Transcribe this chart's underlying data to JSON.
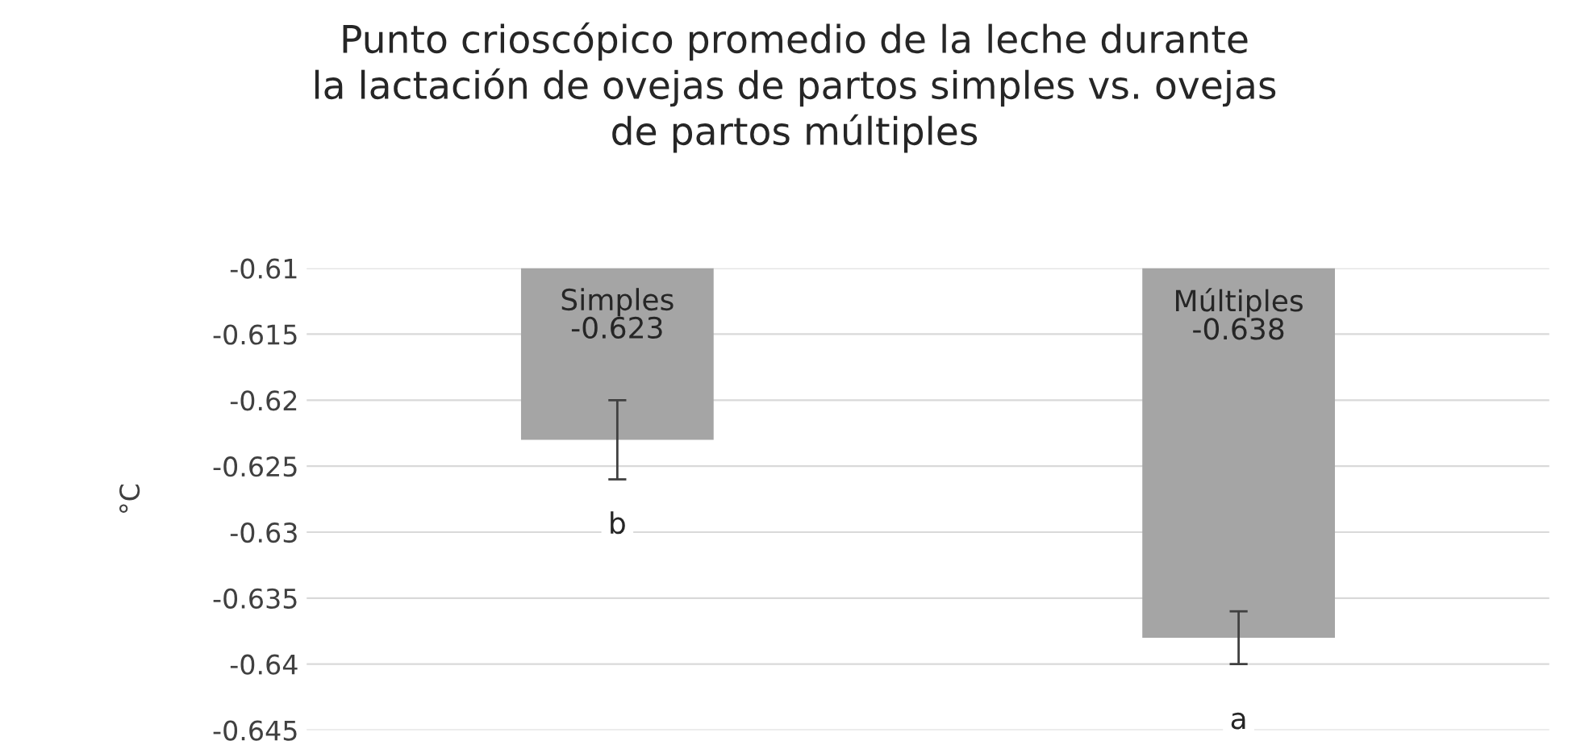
{
  "chart_data": {
    "type": "bar",
    "title": "Punto crioscópico promedio de la leche durante\nla lactación de ovejas de partos simples vs. ovejas\nde partos múltiples",
    "ylabel": "°C",
    "categories": [
      "Simples",
      "Múltiples"
    ],
    "values": [
      -0.623,
      -0.638
    ],
    "errors": [
      0.003,
      0.002
    ],
    "color": "#a5a5a5",
    "data_labels": true,
    "annotations": [
      {
        "text": "b",
        "x": "Simples",
        "y": -0.6295
      },
      {
        "text": "a",
        "x": "Múltiples",
        "y": -0.6443
      }
    ],
    "ylim": [
      -0.645,
      -0.61
    ],
    "yticks": [
      -0.645,
      -0.64,
      -0.635,
      -0.63,
      -0.625,
      -0.62,
      -0.615,
      -0.61
    ],
    "grid": "y",
    "tick_labels": "y",
    "legend": false
  }
}
